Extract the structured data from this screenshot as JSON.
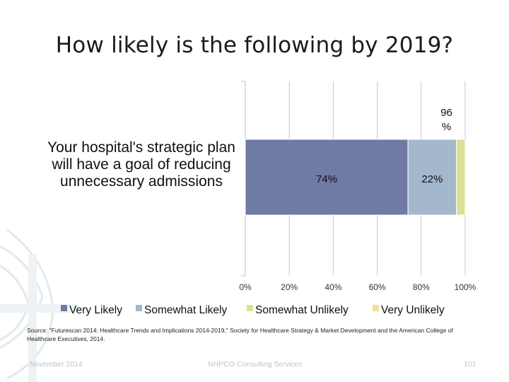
{
  "slide": {
    "title": "How likely is the following by 2019?",
    "source": "Source: \"Futurescan 2014: Healthcare Trends and Implications 2014-2019,\" Society for Healthcare Strategy & Market Development and the American College of Healthcare Executives, 2014.",
    "footer_date": "November 2014",
    "footer_org": "NHPCO Consulting Services",
    "page_number": "101"
  },
  "chart_data": {
    "type": "bar",
    "orientation": "horizontal",
    "stacked": true,
    "categories": [
      "Your hospital's strategic plan will have a goal of reducing unnecessary admissions"
    ],
    "series": [
      {
        "name": "Very Likely",
        "values": [
          74
        ],
        "label": "74%",
        "color": "#6f7aa5"
      },
      {
        "name": "Somewhat Likely",
        "values": [
          22
        ],
        "label": "22%",
        "color": "#a3b7cd"
      },
      {
        "name": "Somewhat Unlikely",
        "values": [
          4
        ],
        "label": "",
        "color": "#dce094"
      },
      {
        "name": "Very Unlikely",
        "values": [
          0
        ],
        "label": "",
        "color": "#efe09a"
      }
    ],
    "total_label": "96\n%",
    "xlim": [
      0,
      100
    ],
    "ticks": [
      "0%",
      "20%",
      "40%",
      "60%",
      "80%",
      "100%"
    ],
    "grid": true,
    "legend_position": "bottom"
  }
}
